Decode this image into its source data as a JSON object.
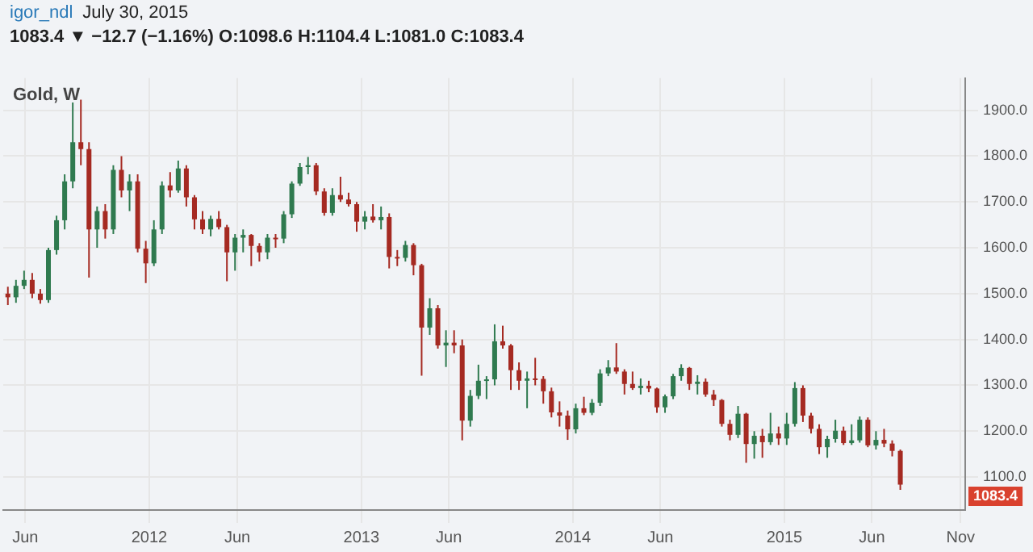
{
  "chart_data": {
    "type": "candlestick",
    "title": "Gold, W",
    "subtitle": "1083.4 ▼ −12.7 (−1.16%) O:1098.6 H:1104.4 L:1081.0 C:1083.4",
    "annotations": [
      "igor_ndl",
      "July 30, 2015",
      "1083.4"
    ],
    "x": [
      "2011-05-02",
      "2011-05-16",
      "2011-05-30",
      "2011-06-13",
      "2011-06-27",
      "2011-07-11",
      "2011-07-25",
      "2011-08-08",
      "2011-08-22",
      "2011-09-05",
      "2011-09-19",
      "2011-10-03",
      "2011-10-17",
      "2011-10-31",
      "2011-11-14",
      "2011-11-28",
      "2011-12-12",
      "2011-12-26",
      "2012-01-09",
      "2012-01-23",
      "2012-02-06",
      "2012-02-20",
      "2012-03-05",
      "2012-03-19",
      "2012-04-02",
      "2012-04-16",
      "2012-04-30",
      "2012-05-14",
      "2012-05-28",
      "2012-06-11",
      "2012-06-25",
      "2012-07-09",
      "2012-07-23",
      "2012-08-06",
      "2012-08-20",
      "2012-09-03",
      "2012-09-17",
      "2012-10-01",
      "2012-10-15",
      "2012-10-29",
      "2012-11-12",
      "2012-11-26",
      "2012-12-10",
      "2012-12-24",
      "2013-01-07",
      "2013-01-21",
      "2013-02-04",
      "2013-02-18",
      "2013-03-04",
      "2013-03-18",
      "2013-04-01",
      "2013-04-15",
      "2013-04-29",
      "2013-05-13",
      "2013-05-27",
      "2013-06-10",
      "2013-06-24",
      "2013-07-08",
      "2013-07-22",
      "2013-08-05",
      "2013-08-19",
      "2013-09-02",
      "2013-09-16",
      "2013-09-30",
      "2013-10-14",
      "2013-10-28",
      "2013-11-11",
      "2013-11-25",
      "2013-12-09",
      "2013-12-23",
      "2014-01-06",
      "2014-01-20",
      "2014-02-03",
      "2014-02-17",
      "2014-03-03",
      "2014-03-17",
      "2014-03-31",
      "2014-04-14",
      "2014-04-28",
      "2014-05-12",
      "2014-05-26",
      "2014-06-09",
      "2014-06-23",
      "2014-07-07",
      "2014-07-21",
      "2014-08-04",
      "2014-08-18",
      "2014-09-01",
      "2014-09-15",
      "2014-09-29",
      "2014-10-13",
      "2014-10-27",
      "2014-11-10",
      "2014-11-24",
      "2014-12-08",
      "2014-12-22",
      "2015-01-05",
      "2015-01-19",
      "2015-02-02",
      "2015-02-16",
      "2015-03-02",
      "2015-03-16",
      "2015-03-30",
      "2015-04-13",
      "2015-04-27",
      "2015-05-11",
      "2015-05-25",
      "2015-06-08",
      "2015-06-22",
      "2015-07-06",
      "2015-07-20"
    ],
    "ohlc": [
      [
        1500,
        1515,
        1475,
        1492
      ],
      [
        1492,
        1530,
        1480,
        1517
      ],
      [
        1517,
        1550,
        1510,
        1530
      ],
      [
        1530,
        1545,
        1490,
        1500
      ],
      [
        1500,
        1510,
        1478,
        1486
      ],
      [
        1486,
        1600,
        1480,
        1595
      ],
      [
        1595,
        1670,
        1585,
        1660
      ],
      [
        1660,
        1760,
        1640,
        1745
      ],
      [
        1745,
        1917,
        1730,
        1830
      ],
      [
        1830,
        1923,
        1780,
        1815
      ],
      [
        1815,
        1830,
        1535,
        1640
      ],
      [
        1640,
        1690,
        1600,
        1680
      ],
      [
        1680,
        1695,
        1620,
        1640
      ],
      [
        1640,
        1780,
        1630,
        1770
      ],
      [
        1770,
        1800,
        1710,
        1725
      ],
      [
        1725,
        1760,
        1680,
        1745
      ],
      [
        1745,
        1760,
        1590,
        1598
      ],
      [
        1598,
        1615,
        1523,
        1566
      ],
      [
        1566,
        1660,
        1560,
        1640
      ],
      [
        1640,
        1745,
        1630,
        1736
      ],
      [
        1736,
        1765,
        1710,
        1725
      ],
      [
        1725,
        1790,
        1720,
        1773
      ],
      [
        1773,
        1780,
        1690,
        1710
      ],
      [
        1710,
        1715,
        1640,
        1662
      ],
      [
        1662,
        1680,
        1630,
        1640
      ],
      [
        1640,
        1670,
        1625,
        1663
      ],
      [
        1663,
        1680,
        1640,
        1645
      ],
      [
        1645,
        1650,
        1527,
        1590
      ],
      [
        1590,
        1630,
        1550,
        1622
      ],
      [
        1622,
        1640,
        1590,
        1628
      ],
      [
        1628,
        1630,
        1560,
        1604
      ],
      [
        1604,
        1610,
        1570,
        1590
      ],
      [
        1590,
        1630,
        1575,
        1622
      ],
      [
        1622,
        1630,
        1600,
        1620
      ],
      [
        1620,
        1680,
        1610,
        1673
      ],
      [
        1673,
        1745,
        1665,
        1740
      ],
      [
        1740,
        1785,
        1735,
        1776
      ],
      [
        1776,
        1798,
        1760,
        1780
      ],
      [
        1780,
        1785,
        1715,
        1723
      ],
      [
        1723,
        1730,
        1670,
        1676
      ],
      [
        1676,
        1730,
        1670,
        1715
      ],
      [
        1715,
        1755,
        1700,
        1705
      ],
      [
        1705,
        1720,
        1690,
        1695
      ],
      [
        1695,
        1700,
        1635,
        1657
      ],
      [
        1657,
        1680,
        1640,
        1668
      ],
      [
        1668,
        1695,
        1655,
        1660
      ],
      [
        1660,
        1690,
        1640,
        1667
      ],
      [
        1667,
        1675,
        1555,
        1580
      ],
      [
        1580,
        1595,
        1560,
        1578
      ],
      [
        1578,
        1615,
        1570,
        1606
      ],
      [
        1606,
        1610,
        1540,
        1562
      ],
      [
        1562,
        1565,
        1321,
        1426
      ],
      [
        1426,
        1490,
        1410,
        1468
      ],
      [
        1468,
        1475,
        1380,
        1387
      ],
      [
        1387,
        1420,
        1340,
        1393
      ],
      [
        1393,
        1420,
        1370,
        1387
      ],
      [
        1387,
        1400,
        1180,
        1223
      ],
      [
        1223,
        1290,
        1210,
        1277
      ],
      [
        1277,
        1345,
        1270,
        1310
      ],
      [
        1310,
        1320,
        1270,
        1313
      ],
      [
        1313,
        1433,
        1300,
        1396
      ],
      [
        1396,
        1430,
        1380,
        1387
      ],
      [
        1387,
        1390,
        1290,
        1333
      ],
      [
        1333,
        1350,
        1290,
        1310
      ],
      [
        1310,
        1330,
        1250,
        1315
      ],
      [
        1315,
        1360,
        1300,
        1314
      ],
      [
        1314,
        1320,
        1260,
        1287
      ],
      [
        1287,
        1295,
        1230,
        1241
      ],
      [
        1241,
        1265,
        1210,
        1234
      ],
      [
        1234,
        1245,
        1181,
        1204
      ],
      [
        1204,
        1260,
        1195,
        1250
      ],
      [
        1250,
        1275,
        1235,
        1240
      ],
      [
        1240,
        1270,
        1235,
        1262
      ],
      [
        1262,
        1335,
        1255,
        1326
      ],
      [
        1326,
        1355,
        1320,
        1339
      ],
      [
        1339,
        1392,
        1325,
        1330
      ],
      [
        1330,
        1335,
        1280,
        1303
      ],
      [
        1303,
        1330,
        1290,
        1294
      ],
      [
        1294,
        1315,
        1280,
        1299
      ],
      [
        1299,
        1310,
        1285,
        1293
      ],
      [
        1293,
        1295,
        1240,
        1252
      ],
      [
        1252,
        1280,
        1240,
        1276
      ],
      [
        1276,
        1325,
        1270,
        1320
      ],
      [
        1320,
        1346,
        1310,
        1338
      ],
      [
        1338,
        1340,
        1290,
        1303
      ],
      [
        1303,
        1322,
        1280,
        1308
      ],
      [
        1308,
        1315,
        1275,
        1280
      ],
      [
        1280,
        1290,
        1255,
        1268
      ],
      [
        1268,
        1270,
        1210,
        1216
      ],
      [
        1216,
        1225,
        1180,
        1192
      ],
      [
        1192,
        1255,
        1185,
        1238
      ],
      [
        1238,
        1240,
        1131,
        1172
      ],
      [
        1172,
        1200,
        1140,
        1190
      ],
      [
        1190,
        1205,
        1142,
        1176
      ],
      [
        1176,
        1240,
        1170,
        1195
      ],
      [
        1195,
        1210,
        1170,
        1184
      ],
      [
        1184,
        1240,
        1170,
        1216
      ],
      [
        1216,
        1307,
        1210,
        1294
      ],
      [
        1294,
        1300,
        1220,
        1234
      ],
      [
        1234,
        1240,
        1195,
        1205
      ],
      [
        1205,
        1215,
        1150,
        1165
      ],
      [
        1165,
        1190,
        1142,
        1183
      ],
      [
        1183,
        1225,
        1175,
        1201
      ],
      [
        1201,
        1210,
        1170,
        1174
      ],
      [
        1174,
        1215,
        1170,
        1180
      ],
      [
        1180,
        1232,
        1175,
        1225
      ],
      [
        1225,
        1230,
        1165,
        1169
      ],
      [
        1169,
        1200,
        1160,
        1181
      ],
      [
        1181,
        1205,
        1165,
        1173
      ],
      [
        1173,
        1180,
        1145,
        1157
      ],
      [
        1157,
        1160,
        1072,
        1083.4
      ]
    ],
    "xlim": [
      "2011-04-24",
      "2015-11-09"
    ],
    "xticks": [
      {
        "value": "2011-06-01",
        "label": "Jun"
      },
      {
        "value": "2012-01-01",
        "label": "2012"
      },
      {
        "value": "2012-06-01",
        "label": "Jun"
      },
      {
        "value": "2013-01-01",
        "label": "2013"
      },
      {
        "value": "2013-06-01",
        "label": "Jun"
      },
      {
        "value": "2014-01-01",
        "label": "2014"
      },
      {
        "value": "2014-06-01",
        "label": "Jun"
      },
      {
        "value": "2015-01-01",
        "label": "2015"
      },
      {
        "value": "2015-06-01",
        "label": "Jun"
      },
      {
        "value": "2015-11-01",
        "label": "Nov"
      }
    ],
    "ylim": [
      1028,
      1970
    ],
    "yticks": [
      {
        "value": 1100,
        "label": "1100.0"
      },
      {
        "value": 1200,
        "label": "1200.0"
      },
      {
        "value": 1300,
        "label": "1300.0"
      },
      {
        "value": 1400,
        "label": "1400.0"
      },
      {
        "value": 1500,
        "label": "1500.0"
      },
      {
        "value": 1600,
        "label": "1600.0"
      },
      {
        "value": 1700,
        "label": "1700.0"
      },
      {
        "value": 1800,
        "label": "1800.0"
      },
      {
        "value": 1900,
        "label": "1900.0"
      }
    ],
    "grid": true
  }
}
